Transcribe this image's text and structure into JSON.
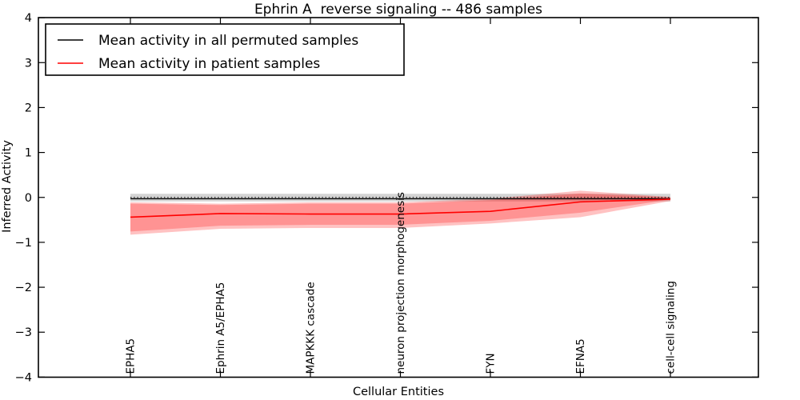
{
  "chart_data": {
    "type": "line",
    "title": "Ephrin A  reverse signaling -- 486 samples",
    "xlabel": "Cellular Entities",
    "ylabel": "Inferred Activity",
    "ylim": [
      -4,
      4
    ],
    "grid": false,
    "legend_position": "upper left",
    "ytick_values": [
      4,
      3,
      2,
      1,
      0,
      -1,
      -2,
      -3,
      -4
    ],
    "ytick_labels": [
      "4",
      "3",
      "2",
      "1",
      "0",
      "−1",
      "−2",
      "−3",
      "−4"
    ],
    "categories": [
      "EPHA5",
      "Ephrin A5/EPHA5",
      "MAPKKK cascade",
      "neuron projection morphogenesis",
      "FYN",
      "EFNA5",
      "cell-cell signaling"
    ],
    "zero_line": {
      "value": 0,
      "style": "dotted",
      "color": "#000000"
    },
    "series": [
      {
        "name": "Mean activity in all permuted samples",
        "color": "#000000",
        "line_width": 1.3,
        "values": [
          -0.03,
          -0.03,
          -0.03,
          -0.03,
          -0.03,
          -0.03,
          -0.03
        ],
        "band_upper": [
          0.08,
          0.08,
          0.08,
          0.08,
          0.08,
          0.08,
          0.08
        ],
        "band_lower": [
          -0.09,
          -0.09,
          -0.09,
          -0.09,
          -0.09,
          -0.09,
          -0.09
        ],
        "band_color": "#a0a0a0",
        "band_opacity": 0.45
      },
      {
        "name": "Mean activity in patient samples",
        "color": "#ff0000",
        "line_width": 1.6,
        "values": [
          -0.44,
          -0.36,
          -0.37,
          -0.37,
          -0.31,
          -0.1,
          -0.04
        ],
        "band_upper": [
          -0.11,
          -0.14,
          -0.11,
          -0.11,
          -0.03,
          0.15,
          0.01
        ],
        "band_lower": [
          -0.83,
          -0.7,
          -0.68,
          -0.68,
          -0.58,
          -0.44,
          -0.08
        ],
        "band2_upper": [
          -0.14,
          -0.17,
          -0.14,
          -0.14,
          -0.06,
          0.09,
          0.0
        ],
        "band2_lower": [
          -0.76,
          -0.63,
          -0.61,
          -0.61,
          -0.52,
          -0.34,
          -0.05
        ],
        "band_color": "#ff0000",
        "band_opacity": 0.24
      }
    ]
  }
}
